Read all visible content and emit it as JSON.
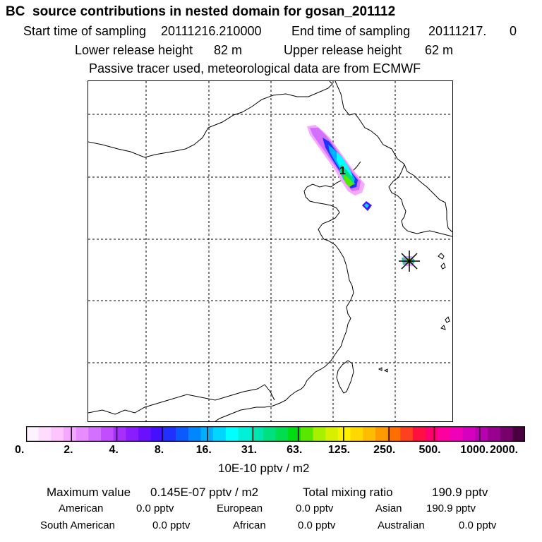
{
  "header": {
    "title": "BC  source contributions in nested domain for gosan_201112",
    "start_label": "Start time of sampling",
    "start_value": "20111216.210000",
    "end_label": "End time of sampling",
    "end_value": "20111217.",
    "end_hour": "0",
    "lower_label": "Lower release height",
    "lower_value": "82 m",
    "upper_label": "Upper release height",
    "upper_value": "62 m",
    "note": "Passive tracer used, meteorological data are from ECMWF"
  },
  "map": {
    "source_marker_label": "1"
  },
  "colorbar": {
    "unit": "10E-10 pptv / m2",
    "tick_labels": [
      "0.",
      "2.",
      "4.",
      "8.",
      "16.",
      "31.",
      "63.",
      "125.",
      "250.",
      "500.",
      "1000.",
      "2000."
    ],
    "colors": [
      "#fff2ff",
      "#ffdcff",
      "#ffc3ff",
      "#f5a8ff",
      "#e88cff",
      "#d470ff",
      "#c24cff",
      "#a82eff",
      "#8a1cff",
      "#6a10ff",
      "#4410ff",
      "#2030ff",
      "#0a5aff",
      "#0086ff",
      "#00b0ff",
      "#00d6ff",
      "#00ffff",
      "#00f0d8",
      "#00e6b0",
      "#00e080",
      "#00de50",
      "#00dc10",
      "#58e800",
      "#a6f000",
      "#d8f000",
      "#fff000",
      "#ffd800",
      "#ffbc00",
      "#ff9a00",
      "#ff6e00",
      "#ff4020",
      "#ff1040",
      "#ff0070",
      "#ff00a0",
      "#f000b8",
      "#d800c0",
      "#b800b0",
      "#9a0090",
      "#78006c",
      "#4a0040"
    ]
  },
  "summary": {
    "max_label": "Maximum value",
    "max_value": "0.145E-07 pptv / m2",
    "total_label": "Total mixing ratio",
    "total_value": "190.9 pptv",
    "regions": [
      {
        "name": "American",
        "value": "0.0 pptv"
      },
      {
        "name": "European",
        "value": "0.0 pptv"
      },
      {
        "name": "Asian",
        "value": "190.9 pptv"
      },
      {
        "name": "South American",
        "value": "0.0 pptv"
      },
      {
        "name": "African",
        "value": "0.0 pptv"
      },
      {
        "name": "Australian",
        "value": "0.0 pptv"
      }
    ]
  }
}
